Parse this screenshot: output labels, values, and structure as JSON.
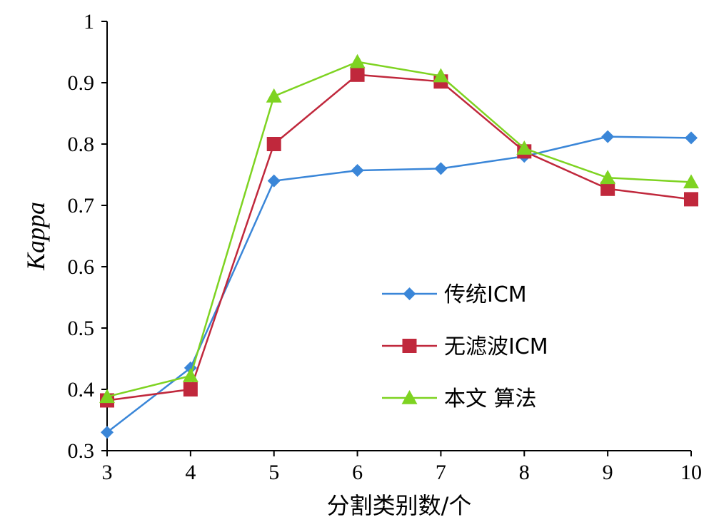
{
  "chart_data": {
    "type": "line",
    "title": "",
    "xlabel": "分割类别数/个",
    "ylabel": "Kappa",
    "x": [
      3,
      4,
      5,
      6,
      7,
      8,
      9,
      10
    ],
    "xlim": [
      3,
      10
    ],
    "ylim": [
      0.3,
      1.0
    ],
    "y_ticks": [
      "0.3",
      "0.4",
      "0.5",
      "0.6",
      "0.7",
      "0.8",
      "0.9",
      "1"
    ],
    "x_ticks": [
      "3",
      "4",
      "5",
      "6",
      "7",
      "8",
      "9",
      "10"
    ],
    "grid": false,
    "legend_position": "center-right",
    "series": [
      {
        "name": "传统ICM",
        "color": "#3a86d8",
        "marker": "diamond",
        "values": [
          0.33,
          0.435,
          0.74,
          0.757,
          0.76,
          0.78,
          0.812,
          0.81
        ]
      },
      {
        "name": "无滤波ICM",
        "color": "#c0283c",
        "marker": "square",
        "values": [
          0.382,
          0.4,
          0.8,
          0.913,
          0.902,
          0.788,
          0.727,
          0.71
        ]
      },
      {
        "name": "本文 算法",
        "color": "#7ed321",
        "marker": "triangle",
        "values": [
          0.388,
          0.422,
          0.878,
          0.934,
          0.911,
          0.793,
          0.745,
          0.738
        ]
      }
    ]
  }
}
